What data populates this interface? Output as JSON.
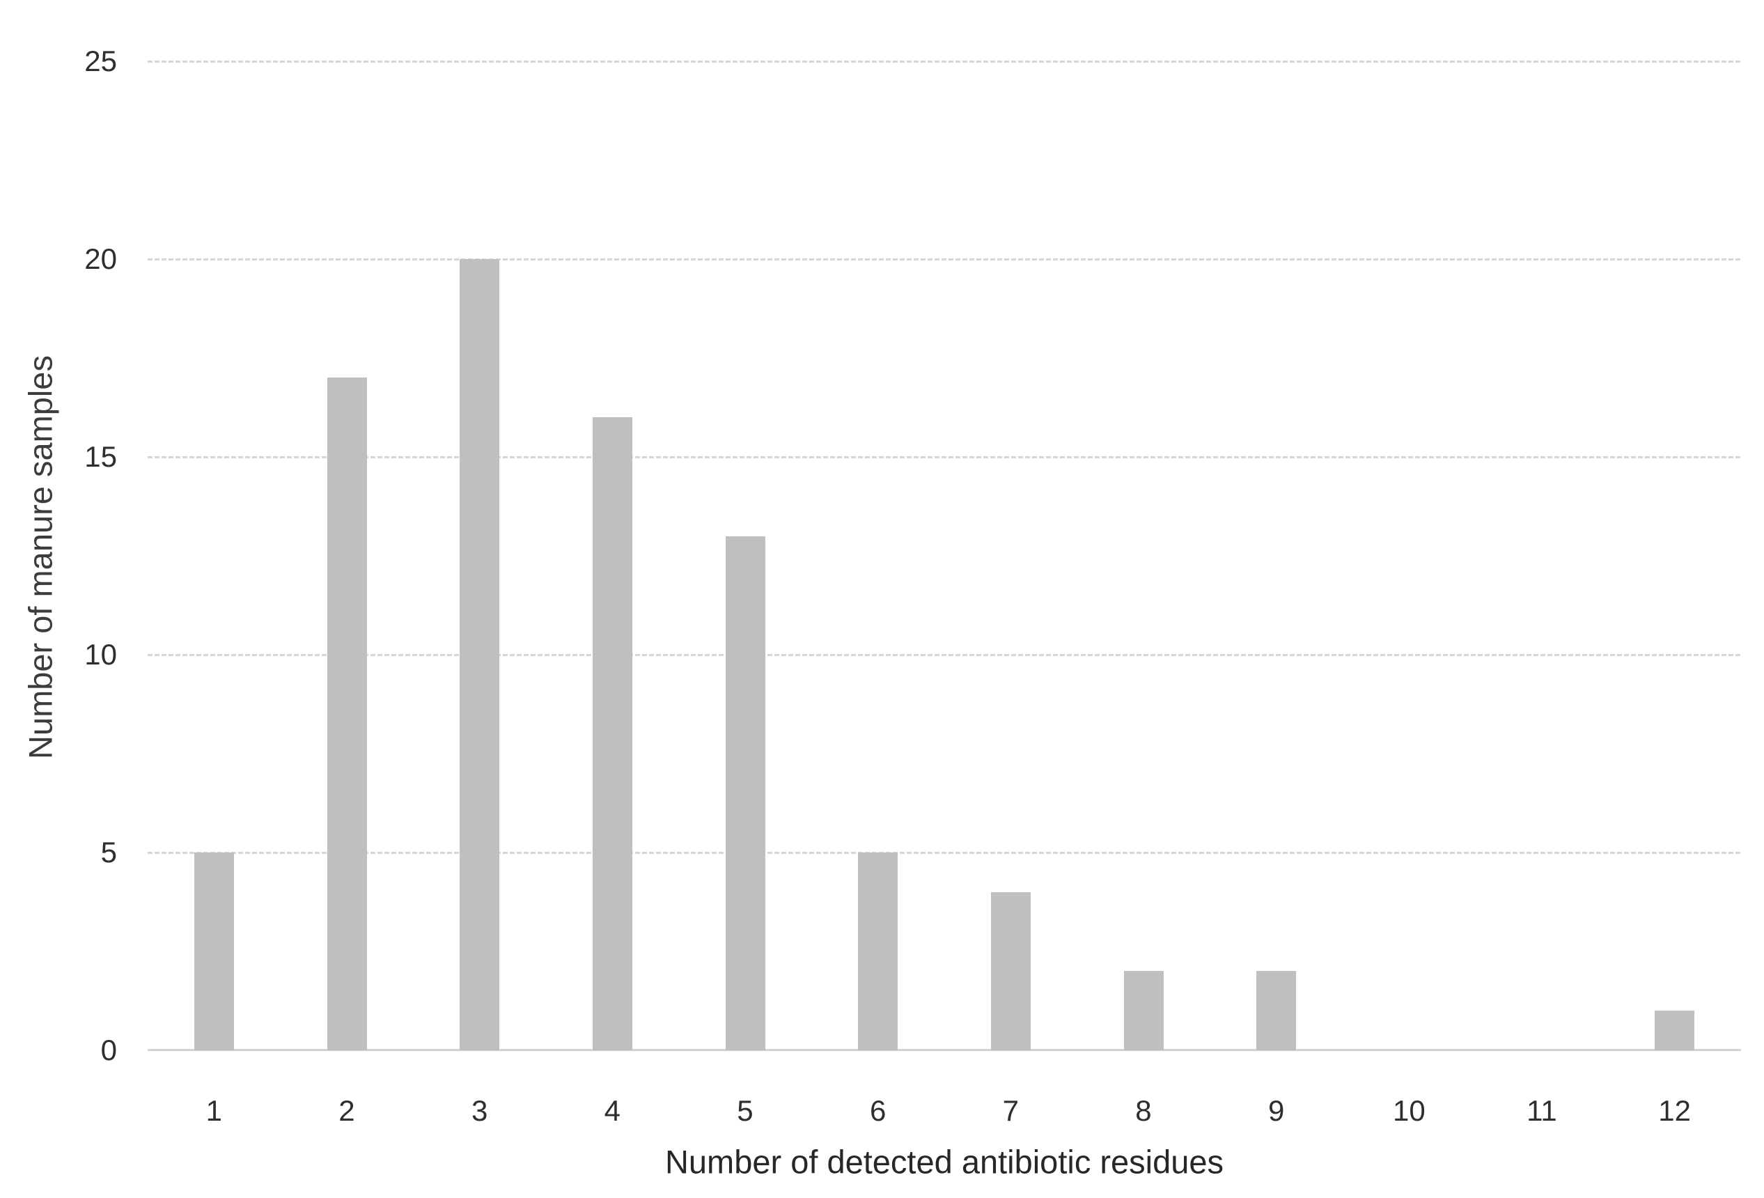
{
  "chart_data": {
    "type": "bar",
    "categories": [
      "1",
      "2",
      "3",
      "4",
      "5",
      "6",
      "7",
      "8",
      "9",
      "10",
      "11",
      "12"
    ],
    "values": [
      5,
      17,
      20,
      16,
      13,
      5,
      4,
      2,
      2,
      0,
      0,
      1
    ],
    "title": "",
    "xlabel": "Number of detected antibiotic residues",
    "ylabel": "Number of manure samples",
    "yticks": [
      0,
      5,
      10,
      15,
      20,
      25
    ],
    "ylim": [
      0,
      25
    ],
    "grid": true,
    "legend": false,
    "colors": {
      "bar_fill": "#bfbfbf",
      "gridline": "#d6d6d6",
      "axis_line": "#d2d2d2",
      "tick_text": "#2e2e2e",
      "title_text": "#3c3c3c",
      "background": "#ffffff"
    }
  }
}
